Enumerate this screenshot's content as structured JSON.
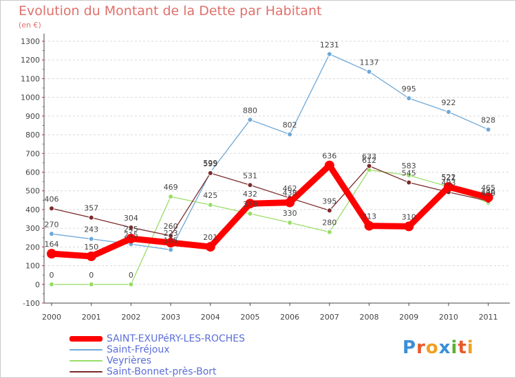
{
  "title": "Evolution du Montant de la Dette par Habitant",
  "subtitle": "(en €)",
  "logo_text": "Proxiti",
  "chart_data": {
    "type": "line",
    "title": "Evolution du Montant de la Dette par Habitant",
    "subtitle": "(en €)",
    "categories": [
      "2000",
      "2001",
      "2002",
      "2003",
      "2004",
      "2005",
      "2006",
      "2007",
      "2008",
      "2009",
      "2010",
      "2011"
    ],
    "ylim": [
      -100,
      1300
    ],
    "yticks": [
      -100,
      0,
      100,
      200,
      300,
      400,
      500,
      600,
      700,
      800,
      900,
      1000,
      1100,
      1200,
      1300
    ],
    "grid": "horizontal dashed",
    "legend": "bottom-left",
    "series": [
      {
        "name": "SAINT-EXUPéRY-LES-ROCHES",
        "color": "#ff0000",
        "values": [
          164,
          150,
          245,
          223,
          201,
          432,
          438,
          636,
          313,
          310,
          521,
          465
        ]
      },
      {
        "name": "Saint-Fréjoux",
        "color": "#6ea8d8",
        "values": [
          270,
          243,
          215,
          185,
          599,
          880,
          802,
          1231,
          1137,
          995,
          922,
          828
        ]
      },
      {
        "name": "Veyrières",
        "color": "#99dd66",
        "values": [
          0,
          0,
          0,
          469,
          425,
          378,
          330,
          280,
          612,
          583,
          522,
          436
        ]
      },
      {
        "name": "Saint-Bonnet-près-Bort",
        "color": "#7a2a2a",
        "values": [
          406,
          357,
          304,
          260,
          595,
          531,
          462,
          395,
          633,
          545,
          493,
          446
        ]
      }
    ]
  }
}
